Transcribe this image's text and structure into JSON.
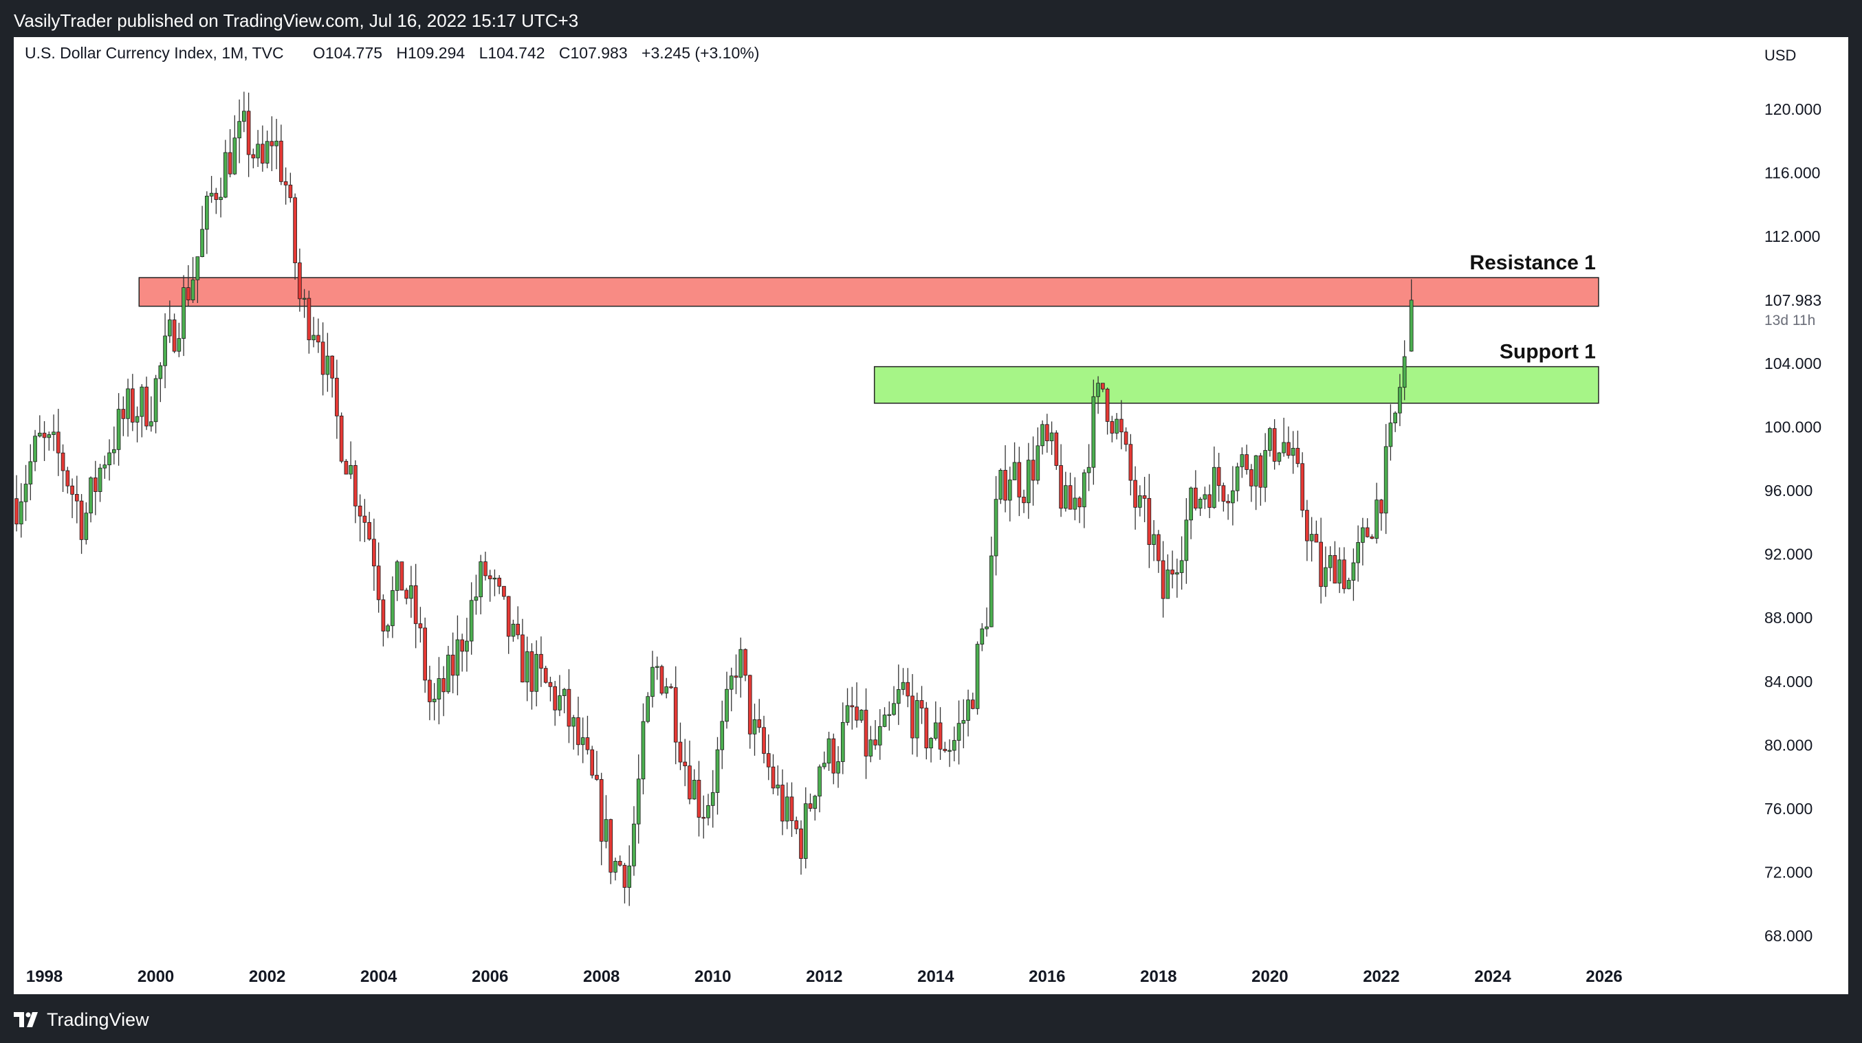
{
  "header": {
    "publish_line": "VasilyTrader published on TradingView.com, Jul 16, 2022 15:17 UTC+3"
  },
  "footer": {
    "brand": "TradingView",
    "logo_icon": "tradingview-logo-icon"
  },
  "chart_data": {
    "type": "candlestick",
    "title": "U.S. Dollar Currency Index, 1M, TVC",
    "ohlc_readout": {
      "open": "O104.775",
      "high": "H109.294",
      "low": "L104.742",
      "close": "C107.983",
      "change": "+3.245 (+3.10%)"
    },
    "currency_label": "USD",
    "y_ticks": [
      "120.000",
      "116.000",
      "112.000",
      "104.000",
      "100.000",
      "96.000",
      "92.000",
      "88.000",
      "84.000",
      "80.000",
      "76.000",
      "72.000",
      "68.000"
    ],
    "y_tick_values": [
      120,
      116,
      112,
      104,
      100,
      96,
      92,
      88,
      84,
      80,
      76,
      72,
      68
    ],
    "x_ticks": [
      "1998",
      "2000",
      "2002",
      "2004",
      "2006",
      "2008",
      "2010",
      "2012",
      "2014",
      "2016",
      "2018",
      "2020",
      "2022",
      "2024",
      "2026"
    ],
    "x_tick_values": [
      1998,
      2000,
      2002,
      2004,
      2006,
      2008,
      2010,
      2012,
      2014,
      2016,
      2018,
      2020,
      2022,
      2024,
      2026
    ],
    "ylim": [
      66.4,
      122.8
    ],
    "xlim": [
      1997.45,
      2028.0
    ],
    "last_price": {
      "label": "107.983",
      "value": 107.983,
      "countdown": "13d 11h",
      "color": "#26a69a"
    },
    "colors": {
      "up": "#4caf50",
      "down": "#e53935",
      "wick": "#333333",
      "resistance_fill": "#f88b84",
      "support_fill": "#a6f587"
    },
    "zones": [
      {
        "name": "Resistance 1",
        "x_from": 1999.7,
        "x_to": 2025.9,
        "y_low": 107.6,
        "y_high": 109.4,
        "color": "#f88b84"
      },
      {
        "name": "Support 1",
        "x_from": 2012.9,
        "x_to": 2025.9,
        "y_low": 101.5,
        "y_high": 103.8,
        "color": "#a6f587"
      }
    ],
    "price_path": [
      [
        1997.5,
        95.5
      ],
      [
        1997.9,
        99.0
      ],
      [
        1998.3,
        98.0
      ],
      [
        1998.7,
        94.0
      ],
      [
        1999.1,
        98.5
      ],
      [
        1999.5,
        101.0
      ],
      [
        1999.9,
        101.5
      ],
      [
        2000.3,
        106.0
      ],
      [
        2000.7,
        110.0
      ],
      [
        2001.0,
        114.5
      ],
      [
        2001.3,
        117.0
      ],
      [
        2001.6,
        118.5
      ],
      [
        2001.9,
        116.0
      ],
      [
        2002.1,
        118.5
      ],
      [
        2002.35,
        115.0
      ],
      [
        2002.6,
        107.5
      ],
      [
        2002.9,
        106.5
      ],
      [
        2003.2,
        101.0
      ],
      [
        2003.6,
        96.0
      ],
      [
        2003.9,
        92.5
      ],
      [
        2004.1,
        88.0
      ],
      [
        2004.4,
        90.5
      ],
      [
        2004.7,
        87.5
      ],
      [
        2004.95,
        82.0
      ],
      [
        2005.3,
        84.5
      ],
      [
        2005.6,
        88.0
      ],
      [
        2005.9,
        91.0
      ],
      [
        2006.2,
        88.5
      ],
      [
        2006.5,
        85.5
      ],
      [
        2006.9,
        84.0
      ],
      [
        2007.3,
        82.5
      ],
      [
        2007.7,
        79.0
      ],
      [
        2007.95,
        76.0
      ],
      [
        2008.2,
        72.5
      ],
      [
        2008.5,
        72.5
      ],
      [
        2008.75,
        80.0
      ],
      [
        2008.95,
        85.0
      ],
      [
        2009.2,
        84.0
      ],
      [
        2009.5,
        79.0
      ],
      [
        2009.8,
        76.0
      ],
      [
        2009.95,
        77.0
      ],
      [
        2010.2,
        81.0
      ],
      [
        2010.45,
        86.0
      ],
      [
        2010.7,
        81.0
      ],
      [
        2010.95,
        79.0
      ],
      [
        2011.3,
        75.5
      ],
      [
        2011.6,
        74.0
      ],
      [
        2011.9,
        79.0
      ],
      [
        2012.2,
        79.5
      ],
      [
        2012.5,
        82.0
      ],
      [
        2012.8,
        79.5
      ],
      [
        2013.1,
        80.5
      ],
      [
        2013.4,
        83.5
      ],
      [
        2013.7,
        81.0
      ],
      [
        2014.0,
        80.5
      ],
      [
        2014.3,
        80.0
      ],
      [
        2014.6,
        82.5
      ],
      [
        2014.9,
        88.0
      ],
      [
        2015.1,
        95.0
      ],
      [
        2015.3,
        97.5
      ],
      [
        2015.6,
        96.5
      ],
      [
        2015.9,
        99.0
      ],
      [
        2016.1,
        98.0
      ],
      [
        2016.35,
        94.5
      ],
      [
        2016.6,
        96.0
      ],
      [
        2016.85,
        101.0
      ],
      [
        2017.0,
        102.5
      ],
      [
        2017.3,
        99.5
      ],
      [
        2017.6,
        95.0
      ],
      [
        2017.9,
        93.0
      ],
      [
        2018.05,
        89.0
      ],
      [
        2018.3,
        92.0
      ],
      [
        2018.6,
        95.0
      ],
      [
        2018.9,
        96.5
      ],
      [
        2019.2,
        96.5
      ],
      [
        2019.6,
        98.0
      ],
      [
        2019.85,
        97.5
      ],
      [
        2020.0,
        98.5
      ],
      [
        2020.2,
        99.5
      ],
      [
        2020.45,
        97.0
      ],
      [
        2020.7,
        93.5
      ],
      [
        2020.95,
        90.0
      ],
      [
        2021.2,
        92.0
      ],
      [
        2021.45,
        90.0
      ],
      [
        2021.7,
        93.0
      ],
      [
        2021.95,
        95.5
      ],
      [
        2022.1,
        97.5
      ],
      [
        2022.25,
        100.5
      ],
      [
        2022.35,
        103.0
      ],
      [
        2022.45,
        104.7
      ]
    ],
    "current_candle": {
      "t": 2022.54,
      "open": 104.775,
      "high": 109.294,
      "low": 104.742,
      "close": 107.983
    }
  }
}
